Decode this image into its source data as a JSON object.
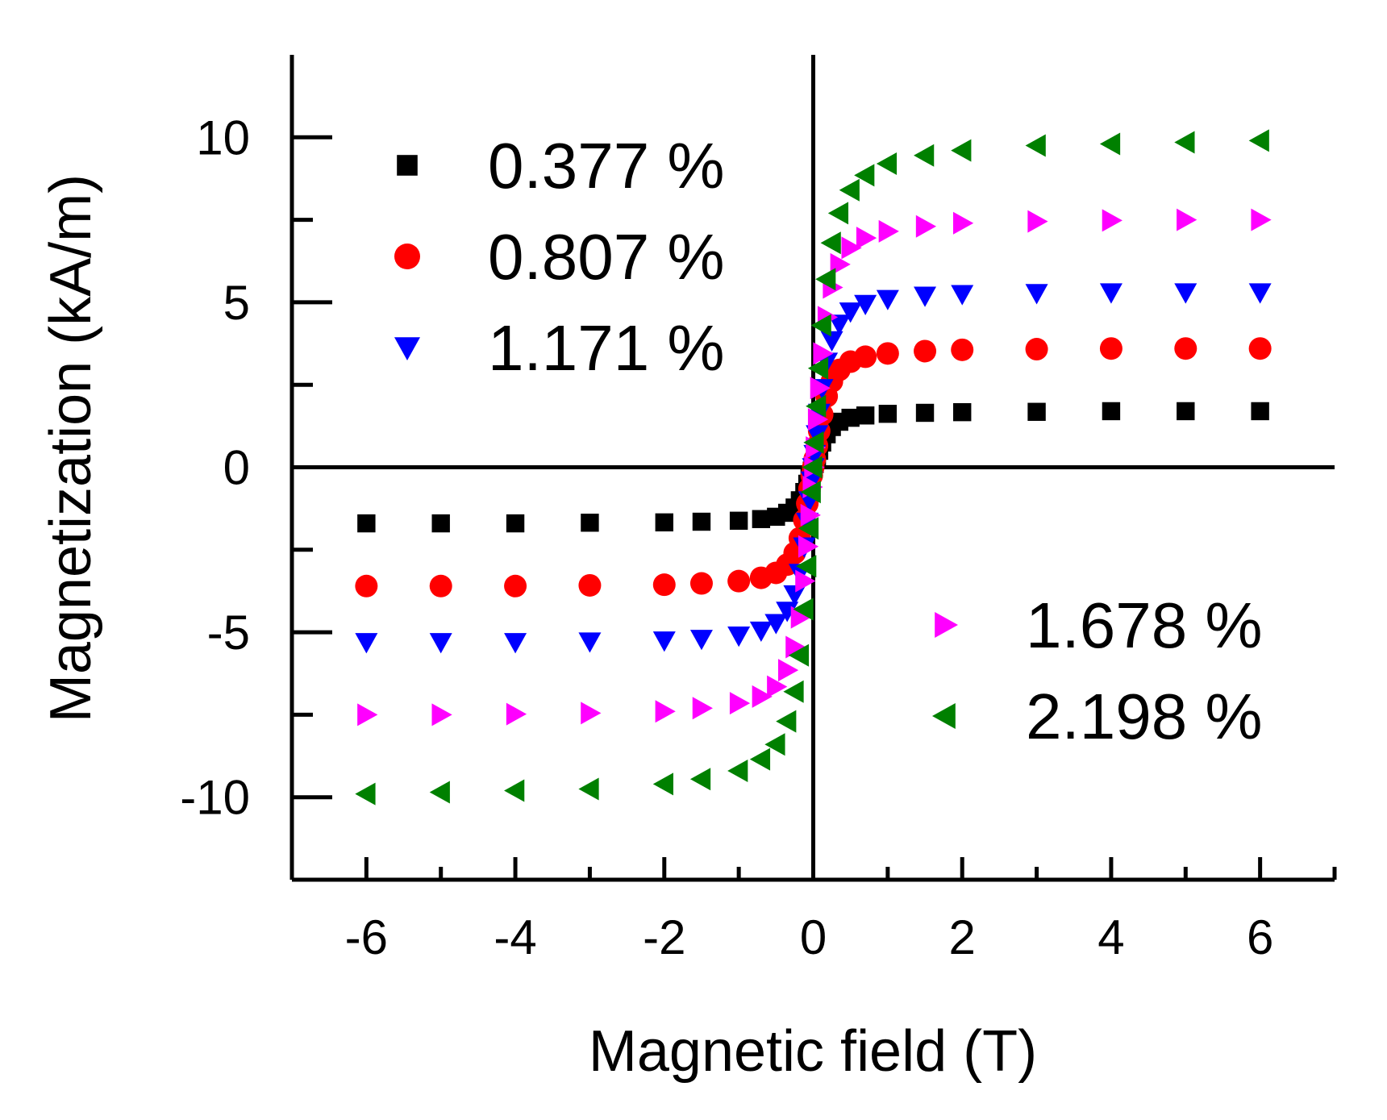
{
  "chart_data": {
    "type": "scatter",
    "xlabel": "Magnetic field (T)",
    "ylabel": "Magnetization (kA/m)",
    "xlim": [
      -7,
      7
    ],
    "ylim": [
      -12.5,
      12.5
    ],
    "x_ticks": [
      -6,
      -4,
      -2,
      0,
      2,
      4,
      6
    ],
    "x_minor_ticks": [
      -5,
      -3,
      -1,
      1,
      3,
      5,
      7
    ],
    "y_ticks": [
      10,
      5,
      0,
      -5,
      -10
    ],
    "y_minor_ticks": [
      7.5,
      2.5,
      -2.5,
      -7.5
    ],
    "legend_groups": [
      {
        "placement": "top-left",
        "series": [
          "0.377 %",
          "0.807 %",
          "1.171 %"
        ]
      },
      {
        "placement": "bottom-right",
        "series": [
          "1.678 %",
          "2.198 %"
        ]
      }
    ],
    "x": [
      -6.0,
      -5.0,
      -4.0,
      -3.0,
      -2.0,
      -1.5,
      -1.0,
      -0.7,
      -0.5,
      -0.35,
      -0.25,
      -0.18,
      -0.12,
      -0.08,
      -0.05,
      -0.02,
      0.0,
      0.02,
      0.05,
      0.08,
      0.12,
      0.18,
      0.25,
      0.35,
      0.5,
      0.7,
      1.0,
      1.5,
      2.0,
      3.0,
      4.0,
      5.0,
      6.0
    ],
    "series": [
      {
        "name": "0.377 %",
        "marker": "square",
        "color": "#000000",
        "values": [
          -1.7,
          -1.7,
          -1.7,
          -1.68,
          -1.67,
          -1.65,
          -1.62,
          -1.57,
          -1.5,
          -1.38,
          -1.22,
          -1.0,
          -0.75,
          -0.5,
          -0.3,
          -0.1,
          0.0,
          0.1,
          0.3,
          0.5,
          0.75,
          1.0,
          1.22,
          1.38,
          1.5,
          1.57,
          1.62,
          1.65,
          1.67,
          1.68,
          1.7,
          1.7,
          1.7
        ]
      },
      {
        "name": "0.807 %",
        "marker": "circle",
        "color": "#ff0000",
        "values": [
          -3.6,
          -3.6,
          -3.6,
          -3.58,
          -3.56,
          -3.52,
          -3.45,
          -3.35,
          -3.2,
          -2.95,
          -2.6,
          -2.15,
          -1.6,
          -1.1,
          -0.65,
          -0.25,
          0.0,
          0.25,
          0.65,
          1.1,
          1.6,
          2.15,
          2.6,
          2.95,
          3.2,
          3.35,
          3.45,
          3.52,
          3.56,
          3.58,
          3.6,
          3.6,
          3.6
        ]
      },
      {
        "name": "1.171 %",
        "marker": "triangle-down",
        "color": "#0000ff",
        "values": [
          -5.3,
          -5.3,
          -5.3,
          -5.28,
          -5.25,
          -5.2,
          -5.1,
          -4.95,
          -4.72,
          -4.35,
          -3.85,
          -3.2,
          -2.4,
          -1.65,
          -1.0,
          -0.4,
          0.0,
          0.4,
          1.0,
          1.65,
          2.4,
          3.2,
          3.85,
          4.35,
          4.72,
          4.95,
          5.1,
          5.2,
          5.25,
          5.28,
          5.3,
          5.3,
          5.3
        ]
      },
      {
        "name": "1.678 %",
        "marker": "triangle-right",
        "color": "#ff00ff",
        "values": [
          -7.5,
          -7.5,
          -7.48,
          -7.45,
          -7.4,
          -7.3,
          -7.15,
          -6.95,
          -6.65,
          -6.15,
          -5.45,
          -4.55,
          -3.45,
          -2.4,
          -1.45,
          -0.6,
          0.0,
          0.6,
          1.45,
          2.4,
          3.45,
          4.55,
          5.45,
          6.15,
          6.65,
          6.95,
          7.15,
          7.3,
          7.4,
          7.45,
          7.48,
          7.5,
          7.5
        ]
      },
      {
        "name": "2.198 %",
        "marker": "triangle-left",
        "color": "#008000",
        "values": [
          -9.9,
          -9.85,
          -9.8,
          -9.75,
          -9.6,
          -9.45,
          -9.2,
          -8.85,
          -8.4,
          -7.7,
          -6.8,
          -5.7,
          -4.3,
          -3.0,
          -1.85,
          -0.75,
          0.0,
          0.75,
          1.85,
          3.0,
          4.3,
          5.7,
          6.8,
          7.7,
          8.4,
          8.85,
          9.2,
          9.45,
          9.6,
          9.75,
          9.8,
          9.85,
          9.9
        ]
      }
    ]
  }
}
